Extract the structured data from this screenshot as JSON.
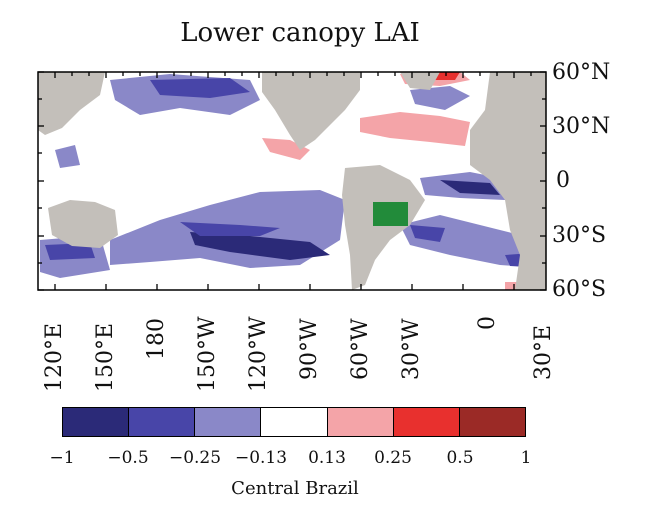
{
  "title": "Lower canopy LAI",
  "lat_labels": [
    "60°N",
    "30°N",
    "0",
    "30°S",
    "60°S"
  ],
  "lon_labels": [
    "120°E",
    "150°E",
    "180",
    "150°W",
    "120°W",
    "90°W",
    "60°W",
    "30°W",
    "0",
    "30°E"
  ],
  "colorbar": {
    "caption": "Central Brazil",
    "ticks": [
      "−1",
      "−0.5",
      "−0.25",
      "−0.13",
      "0.13",
      "0.25",
      "0.5",
      "1"
    ],
    "colors": [
      "#2b2a78",
      "#4845a8",
      "#8a88c8",
      "#ffffff",
      "#f4a4a8",
      "#e8302e",
      "#9b2a26"
    ]
  },
  "region_marker": {
    "name": "Central Brazil",
    "color": "#228b3a"
  },
  "colors": {
    "land": "#c3bfba",
    "ocean": "#ffffff"
  }
}
